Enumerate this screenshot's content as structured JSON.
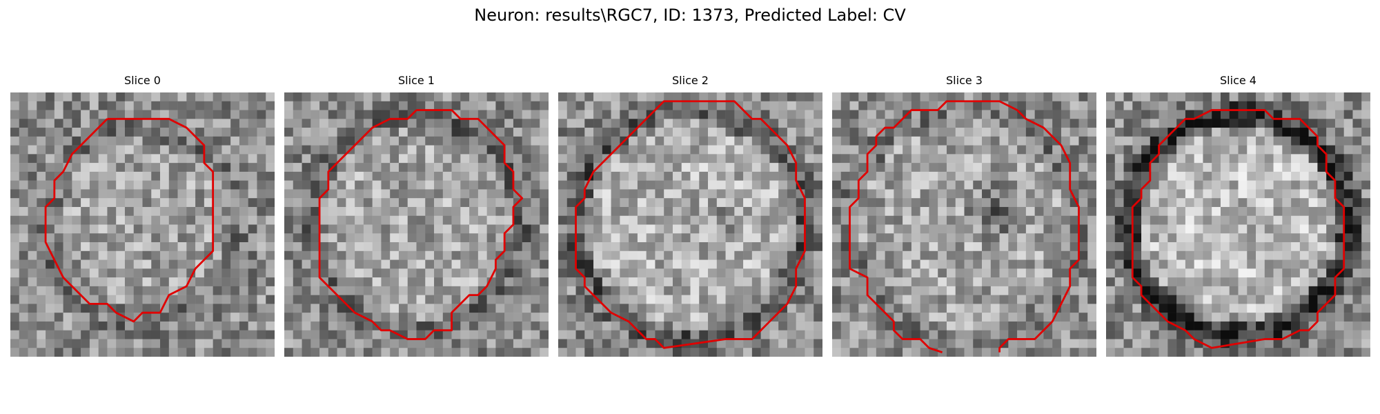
{
  "figure": {
    "title": "Neuron: results\\RGC7, ID: 1373, Predicted Label: CV"
  },
  "slices": [
    {
      "label": "Slice 0"
    },
    {
      "label": "Slice 1"
    },
    {
      "label": "Slice 2"
    },
    {
      "label": "Slice 3"
    },
    {
      "label": "Slice 4"
    }
  ],
  "colors": {
    "contour": "#e00000",
    "background": "#ffffff",
    "colormap": "gray"
  }
}
